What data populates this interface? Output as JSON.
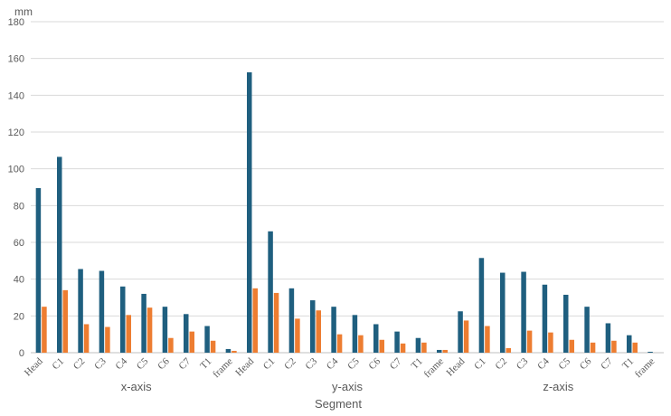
{
  "chart_data": {
    "type": "bar",
    "title": "",
    "ylabel": "mm",
    "xlabel": "Segment",
    "ylim": [
      0,
      180
    ],
    "yticks": [
      0,
      20,
      40,
      60,
      80,
      100,
      120,
      140,
      160,
      180
    ],
    "grid": true,
    "legend": "none",
    "colors": [
      "#1f5f7f",
      "#ed7d31"
    ],
    "groups": [
      {
        "label": "x-axis",
        "categories": [
          "Head",
          "C1",
          "C2",
          "C3",
          "C4",
          "C5",
          "C6",
          "C7",
          "T1",
          "frame"
        ],
        "series": [
          {
            "values": [
              89.5,
              106.5,
              45.5,
              44.5,
              36,
              32,
              25,
              21,
              14.5,
              2
            ]
          },
          {
            "values": [
              25,
              34,
              15.5,
              14,
              20.5,
              24.5,
              8,
              11.5,
              6.5,
              1
            ]
          }
        ]
      },
      {
        "label": "y-axis",
        "categories": [
          "Head",
          "C1",
          "C2",
          "C3",
          "C4",
          "C5",
          "C6",
          "C7",
          "T1",
          "frame"
        ],
        "series": [
          {
            "values": [
              152.5,
              66,
              35,
              28.5,
              25,
              20.5,
              15.5,
              11.5,
              8,
              1.5
            ]
          },
          {
            "values": [
              35,
              32.5,
              18.5,
              23,
              10,
              9.5,
              7,
              5,
              5.5,
              1.5
            ]
          }
        ]
      },
      {
        "label": "z-axis",
        "categories": [
          "Head",
          "C1",
          "C2",
          "C3",
          "C4",
          "C5",
          "C6",
          "C7",
          "T1",
          "frame"
        ],
        "series": [
          {
            "values": [
              22.5,
              51.5,
              43.5,
              44,
              37,
              31.5,
              25,
              16,
              9.5,
              0.5
            ]
          },
          {
            "values": [
              17.5,
              14.5,
              2.5,
              12,
              11,
              7,
              5.5,
              6.5,
              5.5,
              0
            ]
          }
        ]
      }
    ]
  }
}
